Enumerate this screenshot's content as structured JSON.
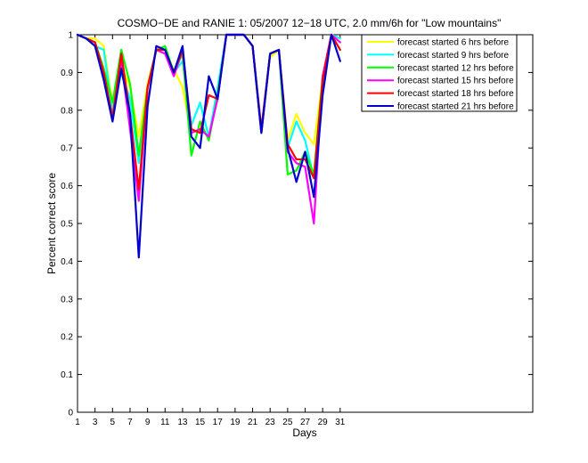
{
  "chart_data": {
    "type": "line",
    "title": "COSMO−DE and RANIE 1: 05/2007 12−18 UTC, 2.0 mm/6h for \"Low mountains\"",
    "xlabel": "Days",
    "ylabel": "Percent correct score",
    "xlim": [
      1,
      53
    ],
    "ylim": [
      0,
      1
    ],
    "x_ticks": [
      1,
      3,
      5,
      7,
      9,
      11,
      13,
      15,
      17,
      19,
      21,
      23,
      25,
      27,
      29,
      31
    ],
    "y_ticks": [
      0,
      0.1,
      0.2,
      0.3,
      0.4,
      0.5,
      0.6,
      0.7,
      0.8,
      0.9,
      1
    ],
    "y_tick_labels": [
      "0",
      "0.1",
      "0.2",
      "0.3",
      "0.4",
      "0.5",
      "0.6",
      "0.7",
      "0.8",
      "0.9",
      "1"
    ],
    "grid": false,
    "legend_position": "top-right",
    "x": [
      1,
      2,
      3,
      4,
      5,
      6,
      7,
      8,
      9,
      10,
      11,
      12,
      13,
      14,
      15,
      16,
      17,
      18,
      19,
      20,
      21,
      22,
      23,
      24,
      25,
      26,
      27,
      28,
      29,
      30,
      31
    ],
    "series": [
      {
        "name": "forecast started 6 hrs before",
        "color": "#ffff00",
        "values": [
          1.0,
          0.99,
          0.99,
          0.97,
          0.82,
          0.92,
          0.86,
          0.73,
          0.87,
          0.96,
          0.95,
          0.91,
          0.86,
          0.74,
          0.75,
          0.73,
          0.85,
          1.0,
          1.0,
          1.0,
          0.97,
          0.75,
          0.94,
          0.96,
          0.72,
          0.79,
          0.74,
          0.71,
          0.88,
          1.0,
          0.99
        ]
      },
      {
        "name": "forecast started 9 hrs before",
        "color": "#00ffff",
        "values": [
          1.0,
          0.99,
          0.97,
          0.96,
          0.8,
          0.9,
          0.83,
          0.66,
          0.86,
          0.96,
          0.95,
          0.9,
          0.93,
          0.76,
          0.82,
          0.73,
          0.86,
          1.0,
          1.0,
          1.0,
          0.97,
          0.75,
          0.95,
          0.96,
          0.7,
          0.77,
          0.72,
          0.62,
          0.86,
          1.0,
          0.99
        ]
      },
      {
        "name": "forecast started 12 hrs before",
        "color": "#00ff00",
        "values": [
          1.0,
          0.99,
          0.98,
          0.91,
          0.82,
          0.96,
          0.87,
          0.68,
          0.86,
          0.96,
          0.97,
          0.9,
          0.95,
          0.68,
          0.77,
          0.72,
          0.84,
          1.0,
          1.0,
          1.0,
          0.97,
          0.74,
          0.95,
          0.96,
          0.63,
          0.64,
          0.69,
          0.63,
          0.89,
          1.0,
          0.96
        ]
      },
      {
        "name": "forecast started 15 hrs before",
        "color": "#ff00ff",
        "values": [
          1.0,
          0.99,
          0.98,
          0.88,
          0.78,
          0.93,
          0.75,
          0.56,
          0.86,
          0.96,
          0.95,
          0.89,
          0.96,
          0.74,
          0.75,
          0.73,
          0.83,
          1.0,
          1.0,
          1.0,
          0.97,
          0.74,
          0.95,
          0.96,
          0.69,
          0.66,
          0.65,
          0.5,
          0.89,
          1.0,
          0.98
        ]
      },
      {
        "name": "forecast started 18 hrs before",
        "color": "#ff0000",
        "values": [
          1.0,
          0.99,
          0.98,
          0.9,
          0.78,
          0.95,
          0.79,
          0.59,
          0.86,
          0.96,
          0.96,
          0.9,
          0.96,
          0.75,
          0.74,
          0.84,
          0.83,
          1.0,
          1.0,
          1.0,
          0.97,
          0.75,
          0.95,
          0.96,
          0.71,
          0.67,
          0.67,
          0.62,
          0.88,
          1.0,
          0.96
        ]
      },
      {
        "name": "forecast started 21 hrs before",
        "color": "#0000cc",
        "values": [
          1.0,
          0.99,
          0.97,
          0.88,
          0.77,
          0.91,
          0.79,
          0.41,
          0.81,
          0.97,
          0.96,
          0.9,
          0.97,
          0.73,
          0.7,
          0.89,
          0.83,
          1.0,
          1.0,
          1.0,
          0.97,
          0.74,
          0.95,
          0.96,
          0.7,
          0.61,
          0.69,
          0.57,
          0.84,
          1.0,
          0.93
        ]
      }
    ]
  }
}
